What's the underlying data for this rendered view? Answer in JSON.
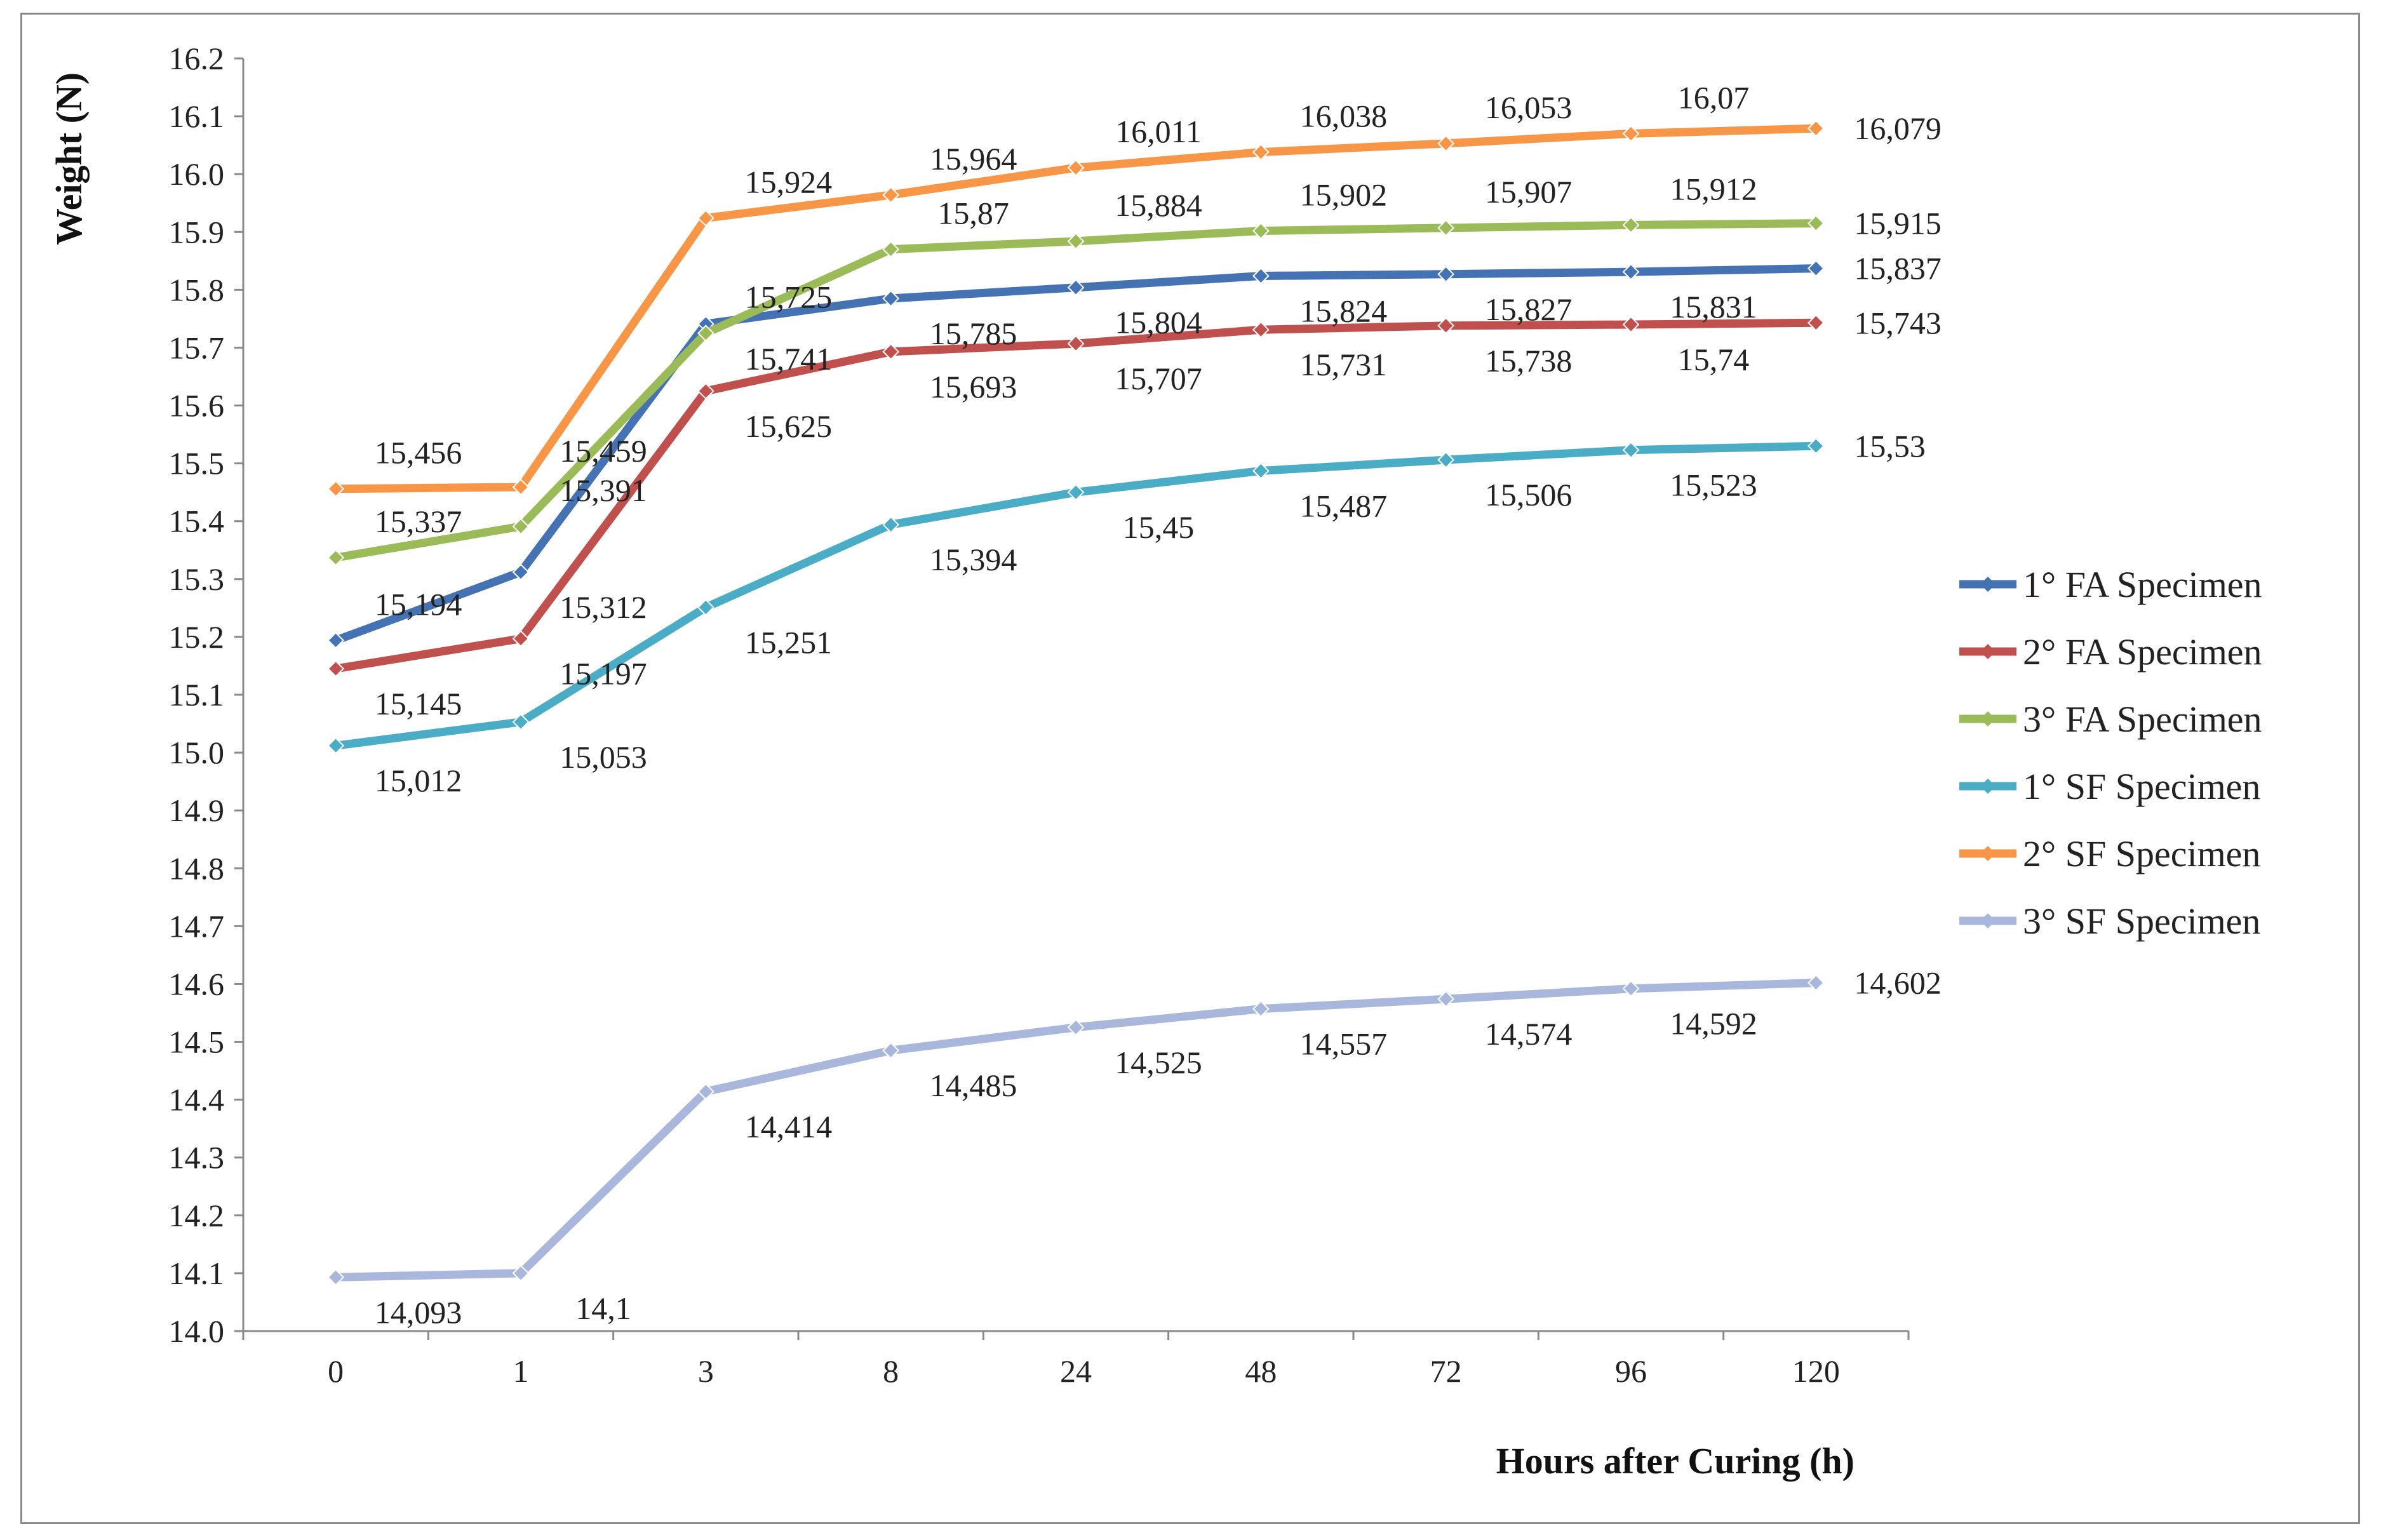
{
  "chart_data": {
    "type": "line",
    "title": "",
    "xlabel": "Hours after Curing (h)",
    "ylabel": "Weight (N)",
    "ylim": [
      14.0,
      16.2
    ],
    "y_ticks": [
      "14.0",
      "14.1",
      "14.2",
      "14.3",
      "14.4",
      "14.5",
      "14.6",
      "14.7",
      "14.8",
      "14.9",
      "15.0",
      "15.1",
      "15.2",
      "15.3",
      "15.4",
      "15.5",
      "15.6",
      "15.7",
      "15.8",
      "15.9",
      "16.0",
      "16.1",
      "16.2"
    ],
    "categories": [
      "0",
      "1",
      "3",
      "8",
      "24",
      "48",
      "72",
      "96",
      "120"
    ],
    "legend_position": "right",
    "grid": false,
    "series": [
      {
        "name": "1° FA Specimen",
        "color": "#4472b3",
        "values": [
          15.194,
          15.312,
          15.741,
          15.785,
          15.804,
          15.824,
          15.827,
          15.831,
          15.837
        ],
        "labels": [
          "15,194",
          "15,312",
          "15,741",
          "15,785",
          "15,804",
          "15,824",
          "15,827",
          "15,831",
          "15,837"
        ]
      },
      {
        "name": "2° FA Specimen",
        "color": "#c0504d",
        "values": [
          15.145,
          15.197,
          15.625,
          15.693,
          15.707,
          15.731,
          15.738,
          15.74,
          15.743
        ],
        "labels": [
          "15,145",
          "15,197",
          "15,625",
          "15,693",
          "15,707",
          "15,731",
          "15,738",
          "15,74",
          "15,743"
        ]
      },
      {
        "name": "3° FA Specimen",
        "color": "#9bbb59",
        "values": [
          15.337,
          15.391,
          15.725,
          15.87,
          15.884,
          15.902,
          15.907,
          15.912,
          15.915
        ],
        "labels": [
          "15,337",
          "15,391",
          "15,725",
          "15,87",
          "15,884",
          "15,902",
          "15,907",
          "15,912",
          "15,915"
        ]
      },
      {
        "name": "1° SF Specimen",
        "color": "#4bacc6",
        "values": [
          15.012,
          15.053,
          15.251,
          15.394,
          15.45,
          15.487,
          15.506,
          15.523,
          15.53
        ],
        "labels": [
          "15,012",
          "15,053",
          "15,251",
          "15,394",
          "15,45",
          "15,487",
          "15,506",
          "15,523",
          "15,53"
        ]
      },
      {
        "name": "2° SF Specimen",
        "color": "#f79646",
        "values": [
          15.456,
          15.459,
          15.924,
          15.964,
          16.011,
          16.038,
          16.053,
          16.07,
          16.079
        ],
        "labels": [
          "15,456",
          "15,459",
          "15,924",
          "15,964",
          "16,011",
          "16,038",
          "16,053",
          "16,07",
          "16,079"
        ]
      },
      {
        "name": "3° SF Specimen",
        "color": "#a9b7dc",
        "values": [
          14.093,
          14.1,
          14.414,
          14.485,
          14.525,
          14.557,
          14.574,
          14.592,
          14.602
        ],
        "labels": [
          "14,093",
          "14,1",
          "14,414",
          "14,485",
          "14,525",
          "14,557",
          "14,574",
          "14,592",
          "14,602"
        ]
      }
    ]
  }
}
